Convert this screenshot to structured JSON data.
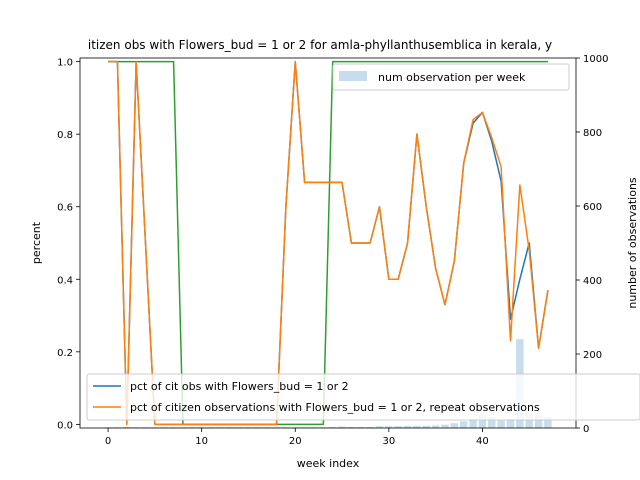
{
  "chart_data": {
    "type": "line",
    "title": "itizen obs with Flowers_bud = 1 or 2 for amla-phyllanthusemblica in kerala, y",
    "xlabel": "week index",
    "ylabel": "percent",
    "ylabel_right": "number of observations",
    "xlim": [
      -3,
      50
    ],
    "ylim": [
      0,
      1.0
    ],
    "ylim_right": [
      0,
      1000
    ],
    "xticks": [
      0,
      10,
      20,
      30,
      40
    ],
    "yticks": [
      0.0,
      0.2,
      0.4,
      0.6,
      0.8,
      1.0
    ],
    "yticks_right": [
      0,
      200,
      400,
      600,
      800,
      1000
    ],
    "grid": false,
    "legend_upper": {
      "placement": "top-right",
      "label": "num observation per week"
    },
    "legend_lower": {
      "placement": "bottom-left"
    },
    "colors": {
      "blue": "#1f77b4",
      "orange": "#ff7f0e",
      "green": "#2ca02c",
      "bars": "#1f77b4"
    },
    "series": [
      {
        "name": "pct of cit obs with Flowers_bud = 1 or 2",
        "color": "#1f77b4",
        "x": [
          0,
          1,
          2,
          3,
          4,
          5,
          6,
          7,
          8,
          9,
          10,
          11,
          12,
          13,
          14,
          15,
          16,
          17,
          18,
          19,
          20,
          21,
          22,
          23,
          24,
          25,
          26,
          27,
          28,
          29,
          30,
          31,
          32,
          33,
          34,
          35,
          36,
          37,
          38,
          39,
          40,
          41,
          42,
          43,
          44,
          45,
          46,
          47
        ],
        "y": [
          1.0,
          1.0,
          0.0,
          1.0,
          0.5,
          0.0,
          0.0,
          0.0,
          0.0,
          0.0,
          0.0,
          0.0,
          0.0,
          0.0,
          0.0,
          0.0,
          0.0,
          0.0,
          0.0,
          0.6,
          1.0,
          0.667,
          0.667,
          0.667,
          0.667,
          0.667,
          0.5,
          0.5,
          0.5,
          0.6,
          0.4,
          0.4,
          0.5,
          0.8,
          0.6,
          0.43,
          0.33,
          0.45,
          0.72,
          0.83,
          0.86,
          0.78,
          0.67,
          0.29,
          0.4,
          0.5,
          0.21,
          0.37
        ]
      },
      {
        "name": "pct of citizen observations with Flowers_bud = 1 or 2, repeat observations",
        "color": "#ff7f0e",
        "x": [
          0,
          1,
          2,
          3,
          4,
          5,
          6,
          7,
          8,
          9,
          10,
          11,
          12,
          13,
          14,
          15,
          16,
          17,
          18,
          19,
          20,
          21,
          22,
          23,
          24,
          25,
          26,
          27,
          28,
          29,
          30,
          31,
          32,
          33,
          34,
          35,
          36,
          37,
          38,
          39,
          40,
          41,
          42,
          43,
          44,
          45,
          46,
          47
        ],
        "y": [
          1.0,
          1.0,
          0.0,
          1.0,
          0.5,
          0.0,
          0.0,
          0.0,
          0.0,
          0.0,
          0.0,
          0.0,
          0.0,
          0.0,
          0.0,
          0.0,
          0.0,
          0.0,
          0.0,
          0.6,
          1.0,
          0.667,
          0.667,
          0.667,
          0.667,
          0.667,
          0.5,
          0.5,
          0.5,
          0.6,
          0.4,
          0.4,
          0.5,
          0.8,
          0.6,
          0.43,
          0.33,
          0.45,
          0.72,
          0.84,
          0.86,
          0.79,
          0.71,
          0.23,
          0.66,
          0.48,
          0.21,
          0.37
        ]
      },
      {
        "color": "#2ca02c",
        "x": [
          0,
          1,
          2,
          3,
          4,
          5,
          6,
          7,
          8,
          9,
          10,
          11,
          12,
          13,
          14,
          15,
          16,
          17,
          18,
          19,
          20,
          21,
          22,
          23,
          24,
          25,
          26,
          27,
          28,
          29,
          30,
          31,
          32,
          33,
          34,
          35,
          36,
          37,
          38,
          39,
          40,
          41,
          42,
          43,
          44,
          45,
          46,
          47
        ],
        "y": [
          1,
          1,
          1,
          1,
          1,
          1,
          1,
          1,
          0,
          0,
          0,
          0,
          0,
          0,
          0,
          0,
          0,
          0,
          0,
          0,
          0,
          0,
          0,
          0,
          1,
          1,
          1,
          1,
          1,
          1,
          1,
          1,
          1,
          1,
          1,
          1,
          1,
          1,
          1,
          1,
          1,
          1,
          1,
          1,
          1,
          1,
          1,
          1
        ]
      }
    ],
    "bars": {
      "name": "num observation per week",
      "axis": "right",
      "x": [
        0,
        1,
        2,
        3,
        4,
        5,
        6,
        7,
        8,
        9,
        10,
        11,
        12,
        13,
        14,
        15,
        16,
        17,
        18,
        19,
        20,
        21,
        22,
        23,
        24,
        25,
        26,
        27,
        28,
        29,
        30,
        31,
        32,
        33,
        34,
        35,
        36,
        37,
        38,
        39,
        40,
        41,
        42,
        43,
        44,
        45,
        46,
        47
      ],
      "values": [
        2,
        2,
        3,
        2,
        2,
        2,
        2,
        2,
        2,
        2,
        2,
        2,
        2,
        2,
        2,
        2,
        2,
        2,
        2,
        2,
        2,
        2,
        2,
        2,
        3,
        4,
        3,
        3,
        3,
        5,
        5,
        5,
        6,
        6,
        6,
        7,
        9,
        13,
        18,
        25,
        35,
        30,
        20,
        25,
        240,
        40,
        35,
        30
      ]
    }
  }
}
